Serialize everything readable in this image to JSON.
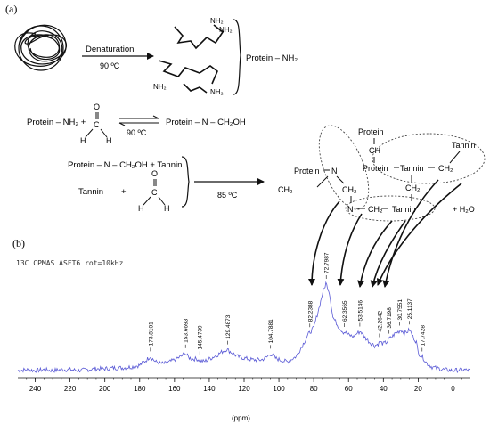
{
  "panel_a": {
    "label": "(a)",
    "step1": {
      "arrow_label": "Denaturation",
      "temp": "90 ºC",
      "amine": "NH₂",
      "product": "Protein – NH₂"
    },
    "step2": {
      "reactant": "Protein – NH₂ +",
      "aldehyde_o": "O",
      "aldehyde_c": "C",
      "aldehyde_h": "H",
      "temp": "90 ºC",
      "product": "Protein – N – CH₂OH"
    },
    "step3": {
      "line1": "Protein – N – CH₂OH  +  Tannin",
      "line2_tannin": "Tannin",
      "line2_plus": "+",
      "aldehyde_o": "O",
      "aldehyde_c": "C",
      "aldehyde_h": "H",
      "temp": "85 ºC"
    },
    "network": {
      "protein": "Protein",
      "ch": "CH",
      "tannin": "Tannin",
      "ch2": "CH₂",
      "n": "N",
      "plus_h2o": "+   H₂O"
    }
  },
  "panel_b": {
    "label": "(b)",
    "caption": "13C CPMAS ASFT6 rot=10kHz",
    "xunit": "(ppm)",
    "series_color": "#5b5bd6",
    "chart_data": {
      "type": "line",
      "xlim": [
        250,
        -10
      ],
      "xticks": [
        "240",
        "220",
        "200",
        "180",
        "160",
        "140",
        "120",
        "100",
        "80",
        "60",
        "40",
        "20",
        "0"
      ],
      "xlabel": "(ppm)",
      "peak_labels": [
        {
          "ppm": 173.8101,
          "text": "173.8101"
        },
        {
          "ppm": 153.6693,
          "text": "153.6693"
        },
        {
          "ppm": 145.4739,
          "text": "145.4739"
        },
        {
          "ppm": 129.4873,
          "text": "129.4873"
        },
        {
          "ppm": 104.7881,
          "text": "104.7881"
        },
        {
          "ppm": 82.2388,
          "text": "82.2388"
        },
        {
          "ppm": 72.7987,
          "text": "72.7987"
        },
        {
          "ppm": 62.3565,
          "text": "62.3565"
        },
        {
          "ppm": 53.5146,
          "text": "53.5146"
        },
        {
          "ppm": 42.2642,
          "text": "42.2642"
        },
        {
          "ppm": 36.7198,
          "text": "36.7198"
        },
        {
          "ppm": 30.7551,
          "text": "30.7551"
        },
        {
          "ppm": 25.1137,
          "text": "25.1137"
        },
        {
          "ppm": 17.7428,
          "text": "17.7428"
        }
      ],
      "series": [
        {
          "x": [
            250,
            245,
            240,
            235,
            230,
            225,
            220,
            215,
            210,
            205,
            200,
            195,
            190,
            185,
            180,
            176,
            174,
            171,
            168,
            165,
            160,
            156,
            154,
            152,
            150,
            147,
            145,
            143,
            140,
            135,
            132,
            130,
            127,
            124,
            120,
            115,
            110,
            107,
            105,
            102,
            98,
            95,
            90,
            86,
            83,
            80,
            77,
            75,
            73,
            71,
            69,
            66,
            63,
            62,
            60,
            57,
            55,
            53,
            51,
            48,
            45,
            43,
            42,
            40,
            38,
            37,
            35,
            33,
            31,
            30,
            28,
            26,
            25,
            23,
            21,
            20,
            18,
            17,
            15,
            12,
            10,
            5,
            0,
            -5,
            -10
          ],
          "y": [
            0.02,
            0.03,
            0.02,
            0.03,
            0.02,
            0.03,
            0.03,
            0.02,
            0.03,
            0.04,
            0.04,
            0.05,
            0.05,
            0.06,
            0.08,
            0.14,
            0.18,
            0.12,
            0.1,
            0.1,
            0.14,
            0.18,
            0.22,
            0.17,
            0.15,
            0.15,
            0.13,
            0.12,
            0.15,
            0.2,
            0.24,
            0.26,
            0.22,
            0.18,
            0.16,
            0.14,
            0.14,
            0.17,
            0.21,
            0.16,
            0.13,
            0.12,
            0.18,
            0.32,
            0.43,
            0.5,
            0.72,
            0.88,
            1.0,
            0.9,
            0.62,
            0.52,
            0.45,
            0.45,
            0.42,
            0.4,
            0.44,
            0.46,
            0.4,
            0.34,
            0.3,
            0.32,
            0.34,
            0.32,
            0.34,
            0.37,
            0.4,
            0.44,
            0.46,
            0.48,
            0.44,
            0.46,
            0.48,
            0.4,
            0.34,
            0.22,
            0.18,
            0.16,
            0.1,
            0.06,
            0.05,
            0.03,
            0.02,
            0.03,
            0.02
          ]
        }
      ]
    }
  }
}
